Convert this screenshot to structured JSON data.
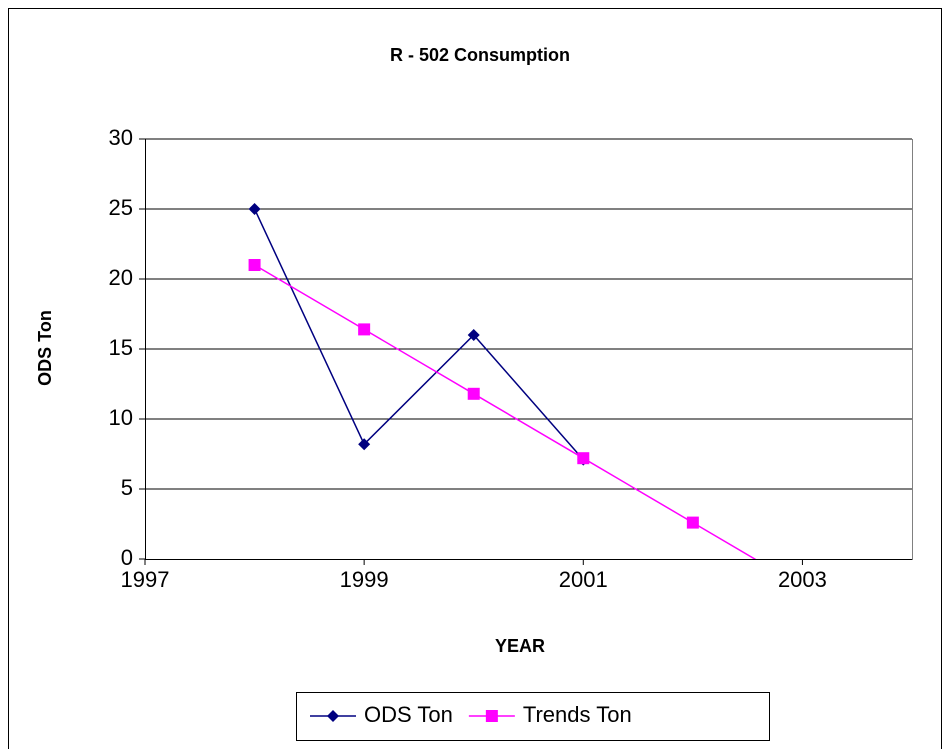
{
  "chart_data": {
    "type": "line",
    "title": "R - 502 Consumption",
    "x_label": "YEAR",
    "y_label": "ODS Ton",
    "x": [
      1998,
      1999,
      2000,
      2001,
      2002,
      2003
    ],
    "series": [
      {
        "name": "ODS Ton",
        "color": "#000080",
        "marker": "diamond",
        "values": [
          25,
          8.2,
          16,
          7.1,
          null,
          null
        ]
      },
      {
        "name": "Trends Ton",
        "color": "#ff00ff",
        "marker": "square",
        "values": [
          21,
          16.4,
          11.8,
          7.2,
          2.6,
          -2.0
        ]
      }
    ],
    "xlim": [
      1997,
      2004
    ],
    "xticks": [
      1997,
      1999,
      2001,
      2003
    ],
    "ylim": [
      0,
      30
    ],
    "yticks": [
      0,
      5,
      10,
      15,
      20,
      25,
      30
    ],
    "grid": true,
    "legend": "bottom"
  }
}
